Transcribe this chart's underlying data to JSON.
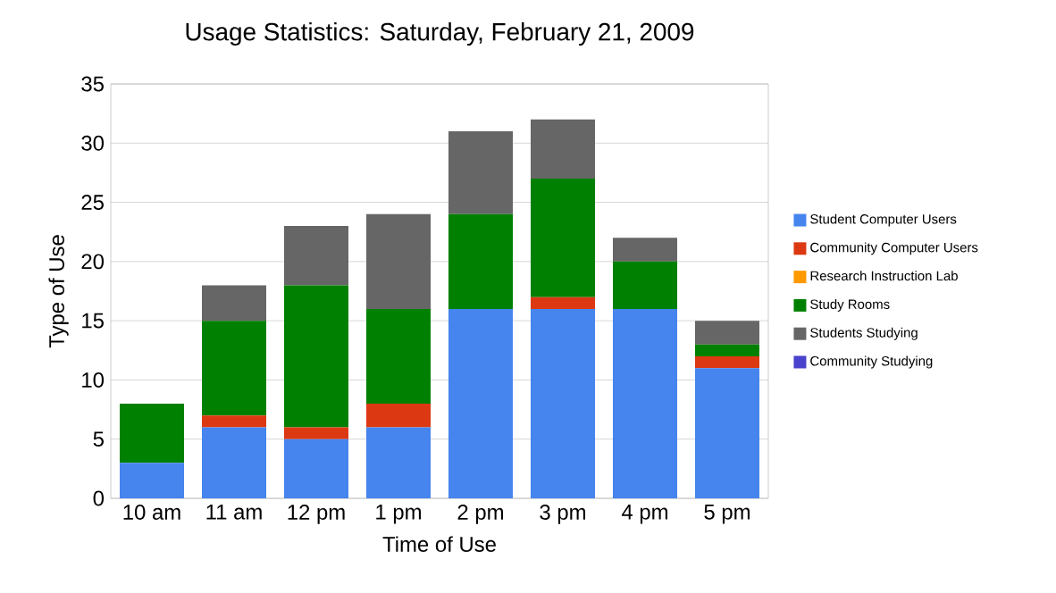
{
  "chart_data": {
    "type": "bar",
    "stacked": true,
    "title": "Usage Statistics: Saturday, February 21, 2009",
    "xlabel": "Time of Use",
    "ylabel": "Type of Use",
    "categories": [
      "10 am",
      "11 am",
      "12 pm",
      "1 pm",
      "2 pm",
      "3 pm",
      "4 pm",
      "5 pm"
    ],
    "series": [
      {
        "name": "Student Computer Users",
        "color": "#4684ee",
        "values": [
          3,
          6,
          5,
          6,
          16,
          16,
          16,
          11
        ]
      },
      {
        "name": "Community Computer Users",
        "color": "#dc3912",
        "values": [
          0,
          1,
          1,
          2,
          0,
          1,
          0,
          1
        ]
      },
      {
        "name": "Research Instruction Lab",
        "color": "#ff9900",
        "values": [
          0,
          0,
          0,
          0,
          0,
          0,
          0,
          0
        ]
      },
      {
        "name": "Study Rooms",
        "color": "#008000",
        "values": [
          5,
          8,
          12,
          8,
          8,
          10,
          4,
          1
        ]
      },
      {
        "name": "Students Studying",
        "color": "#666666",
        "values": [
          0,
          3,
          5,
          8,
          7,
          5,
          2,
          2
        ]
      },
      {
        "name": "Community Studying",
        "color": "#4942cc",
        "values": [
          0,
          0,
          0,
          0,
          0,
          0,
          0,
          0
        ]
      }
    ],
    "ylim": [
      0,
      35
    ],
    "yticks": [
      0,
      5,
      10,
      15,
      20,
      25,
      30,
      35
    ],
    "grid": "y",
    "legend": "right"
  }
}
